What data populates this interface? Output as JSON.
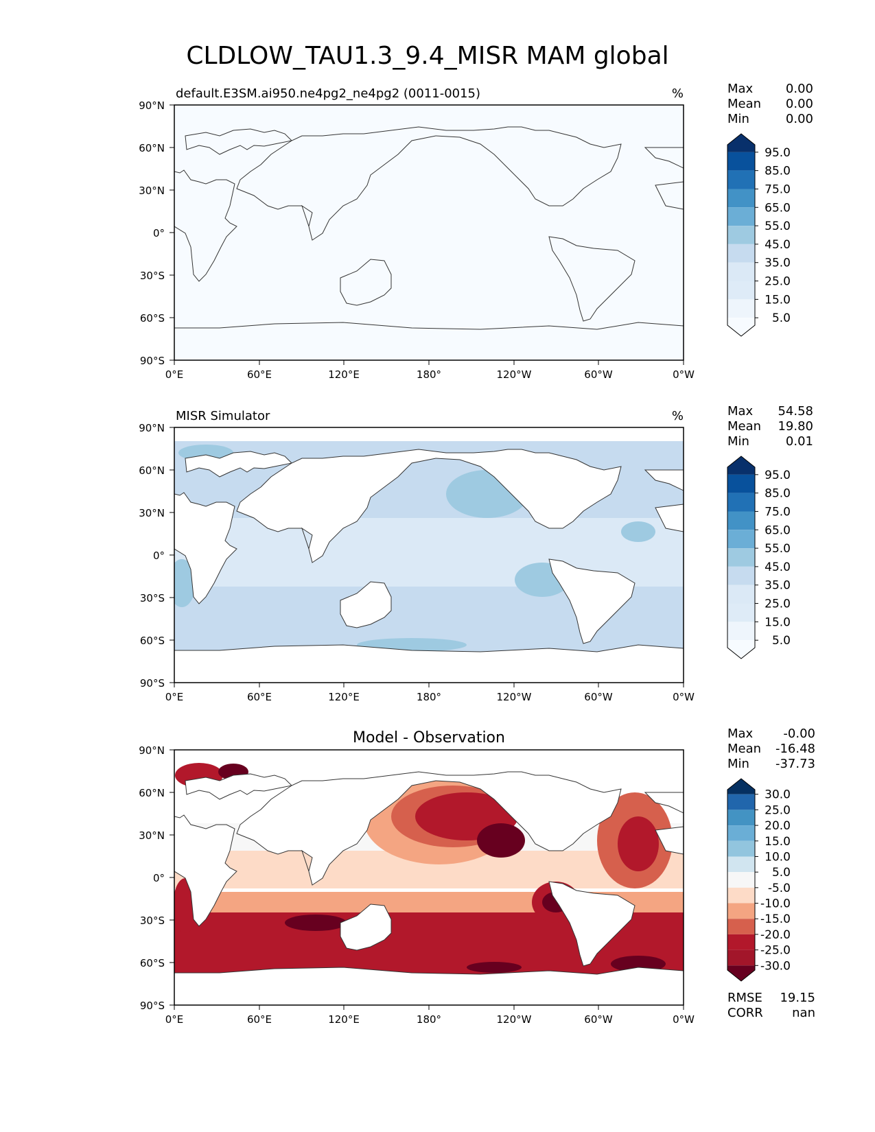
{
  "figure": {
    "title": "CLDLOW_TAU1.3_9.4_MISR MAM global"
  },
  "axes": {
    "lat_ticks": [
      "90°N",
      "60°N",
      "30°N",
      "0°",
      "30°S",
      "60°S",
      "90°S"
    ],
    "lon_ticks": [
      "0°E",
      "60°E",
      "120°E",
      "180°",
      "120°W",
      "60°W",
      "0°W"
    ]
  },
  "stat_labels": {
    "max": "Max",
    "mean": "Mean",
    "min": "Min",
    "rmse": "RMSE",
    "corr": "CORR"
  },
  "panels": [
    {
      "id": "model",
      "left_title": "default.E3SM.ai950.ne4pg2_ne4pg2 (0011-0015)",
      "center_title": "",
      "units": "%",
      "stats": {
        "max": "0.00",
        "mean": "0.00",
        "min": "0.00"
      },
      "colorbar": {
        "labels": [
          "95.0",
          "85.0",
          "75.0",
          "65.0",
          "55.0",
          "45.0",
          "35.0",
          "25.0",
          "15.0",
          "5.0"
        ],
        "colors_top_to_bottom": [
          "#08306b",
          "#08519c",
          "#2171b5",
          "#4292c6",
          "#6baed6",
          "#9ecae1",
          "#c6dbef",
          "#dbe9f6",
          "#deebf7",
          "#eef5fc",
          "#f7fbff"
        ]
      }
    },
    {
      "id": "obs",
      "left_title": "MISR Simulator",
      "center_title": "",
      "units": "%",
      "stats": {
        "max": "54.58",
        "mean": "19.80",
        "min": "0.01"
      },
      "colorbar": {
        "labels": [
          "95.0",
          "85.0",
          "75.0",
          "65.0",
          "55.0",
          "45.0",
          "35.0",
          "25.0",
          "15.0",
          "5.0"
        ],
        "colors_top_to_bottom": [
          "#08306b",
          "#08519c",
          "#2171b5",
          "#4292c6",
          "#6baed6",
          "#9ecae1",
          "#c6dbef",
          "#dbe9f6",
          "#deebf7",
          "#eef5fc",
          "#f7fbff"
        ]
      }
    },
    {
      "id": "diff",
      "left_title": "",
      "center_title": "Model - Observation",
      "units": "",
      "stats": {
        "max": "-0.00",
        "mean": "-16.48",
        "min": "-37.73"
      },
      "extra_stats": {
        "rmse": "19.15",
        "corr": "nan"
      },
      "colorbar": {
        "labels": [
          "30.0",
          "25.0",
          "20.0",
          "15.0",
          "10.0",
          "5.0",
          "-5.0",
          "-10.0",
          "-15.0",
          "-20.0",
          "-25.0",
          "-30.0"
        ],
        "colors_top_to_bottom": [
          "#053061",
          "#2166ac",
          "#4393c3",
          "#6aaed6",
          "#92c5de",
          "#d1e5f0",
          "#f7f7f7",
          "#fddbc7",
          "#f4a582",
          "#d6604d",
          "#b2182b",
          "#a2162a",
          "#67001f"
        ]
      }
    }
  ]
}
